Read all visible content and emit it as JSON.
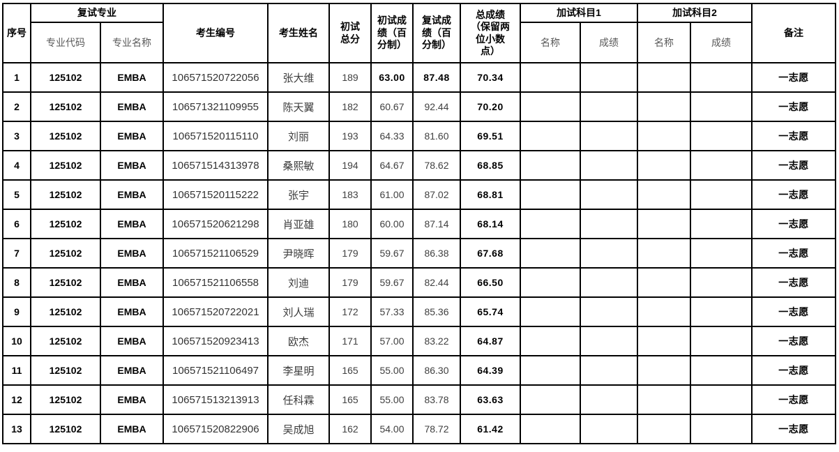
{
  "table": {
    "header": {
      "seq": "序号",
      "retest_major_group": "复试专业",
      "major_code": "专业代码",
      "major_name": "专业名称",
      "candidate_id": "考生编号",
      "candidate_name": "考生姓名",
      "initial_total": "初试\n总分",
      "initial_score": "初试成\n绩（百\n分制）",
      "retest_score": "复试成\n绩（百\n分制）",
      "total_score": "总成绩\n（保留两\n位小数\n点）",
      "extra_subject1_group": "加试科目1",
      "extra_subject2_group": "加试科目2",
      "extra1_name": "名称",
      "extra1_score": "成绩",
      "extra2_name": "名称",
      "extra2_score": "成绩",
      "remark": "备注"
    },
    "columns": [
      {
        "key": "seq"
      },
      {
        "key": "major_code"
      },
      {
        "key": "major_name"
      },
      {
        "key": "candidate_id"
      },
      {
        "key": "candidate_name"
      },
      {
        "key": "initial_total"
      },
      {
        "key": "initial_score"
      },
      {
        "key": "retest_score"
      },
      {
        "key": "total_score"
      },
      {
        "key": "extra1_name"
      },
      {
        "key": "extra1_score"
      },
      {
        "key": "extra2_name"
      },
      {
        "key": "extra2_score"
      },
      {
        "key": "remark"
      }
    ],
    "rows": [
      {
        "seq": "1",
        "major_code": "125102",
        "major_name": "EMBA",
        "candidate_id": "106571520722056",
        "candidate_name": "张大维",
        "initial_total": "189",
        "initial_score": "63.00",
        "retest_score": "87.48",
        "total_score": "70.34",
        "extra1_name": "",
        "extra1_score": "",
        "extra2_name": "",
        "extra2_score": "",
        "remark": "一志愿",
        "bold_cols": [
          "initial_score",
          "retest_score"
        ]
      },
      {
        "seq": "2",
        "major_code": "125102",
        "major_name": "EMBA",
        "candidate_id": "106571321109955",
        "candidate_name": "陈天翼",
        "initial_total": "182",
        "initial_score": "60.67",
        "retest_score": "92.44",
        "total_score": "70.20",
        "extra1_name": "",
        "extra1_score": "",
        "extra2_name": "",
        "extra2_score": "",
        "remark": "一志愿"
      },
      {
        "seq": "3",
        "major_code": "125102",
        "major_name": "EMBA",
        "candidate_id": "106571520115110",
        "candidate_name": "刘丽",
        "initial_total": "193",
        "initial_score": "64.33",
        "retest_score": "81.60",
        "total_score": "69.51",
        "extra1_name": "",
        "extra1_score": "",
        "extra2_name": "",
        "extra2_score": "",
        "remark": "一志愿"
      },
      {
        "seq": "4",
        "major_code": "125102",
        "major_name": "EMBA",
        "candidate_id": "106571514313978",
        "candidate_name": "桑熙敏",
        "initial_total": "194",
        "initial_score": "64.67",
        "retest_score": "78.62",
        "total_score": "68.85",
        "extra1_name": "",
        "extra1_score": "",
        "extra2_name": "",
        "extra2_score": "",
        "remark": "一志愿"
      },
      {
        "seq": "5",
        "major_code": "125102",
        "major_name": "EMBA",
        "candidate_id": "106571520115222",
        "candidate_name": "张宇",
        "initial_total": "183",
        "initial_score": "61.00",
        "retest_score": "87.02",
        "total_score": "68.81",
        "extra1_name": "",
        "extra1_score": "",
        "extra2_name": "",
        "extra2_score": "",
        "remark": "一志愿"
      },
      {
        "seq": "6",
        "major_code": "125102",
        "major_name": "EMBA",
        "candidate_id": "106571520621298",
        "candidate_name": "肖亚雄",
        "initial_total": "180",
        "initial_score": "60.00",
        "retest_score": "87.14",
        "total_score": "68.14",
        "extra1_name": "",
        "extra1_score": "",
        "extra2_name": "",
        "extra2_score": "",
        "remark": "一志愿"
      },
      {
        "seq": "7",
        "major_code": "125102",
        "major_name": "EMBA",
        "candidate_id": "106571521106529",
        "candidate_name": "尹晓晖",
        "initial_total": "179",
        "initial_score": "59.67",
        "retest_score": "86.38",
        "total_score": "67.68",
        "extra1_name": "",
        "extra1_score": "",
        "extra2_name": "",
        "extra2_score": "",
        "remark": "一志愿"
      },
      {
        "seq": "8",
        "major_code": "125102",
        "major_name": "EMBA",
        "candidate_id": "106571521106558",
        "candidate_name": "刘迪",
        "initial_total": "179",
        "initial_score": "59.67",
        "retest_score": "82.44",
        "total_score": "66.50",
        "extra1_name": "",
        "extra1_score": "",
        "extra2_name": "",
        "extra2_score": "",
        "remark": "一志愿"
      },
      {
        "seq": "9",
        "major_code": "125102",
        "major_name": "EMBA",
        "candidate_id": "106571520722021",
        "candidate_name": "刘人瑞",
        "initial_total": "172",
        "initial_score": "57.33",
        "retest_score": "85.36",
        "total_score": "65.74",
        "extra1_name": "",
        "extra1_score": "",
        "extra2_name": "",
        "extra2_score": "",
        "remark": "一志愿"
      },
      {
        "seq": "10",
        "major_code": "125102",
        "major_name": "EMBA",
        "candidate_id": "106571520923413",
        "candidate_name": "欧杰",
        "initial_total": "171",
        "initial_score": "57.00",
        "retest_score": "83.22",
        "total_score": "64.87",
        "extra1_name": "",
        "extra1_score": "",
        "extra2_name": "",
        "extra2_score": "",
        "remark": "一志愿"
      },
      {
        "seq": "11",
        "major_code": "125102",
        "major_name": "EMBA",
        "candidate_id": "106571521106497",
        "candidate_name": "李星明",
        "initial_total": "165",
        "initial_score": "55.00",
        "retest_score": "86.30",
        "total_score": "64.39",
        "extra1_name": "",
        "extra1_score": "",
        "extra2_name": "",
        "extra2_score": "",
        "remark": "一志愿"
      },
      {
        "seq": "12",
        "major_code": "125102",
        "major_name": "EMBA",
        "candidate_id": "106571513213913",
        "candidate_name": "任科霖",
        "initial_total": "165",
        "initial_score": "55.00",
        "retest_score": "83.78",
        "total_score": "63.63",
        "extra1_name": "",
        "extra1_score": "",
        "extra2_name": "",
        "extra2_score": "",
        "remark": "一志愿"
      },
      {
        "seq": "13",
        "major_code": "125102",
        "major_name": "EMBA",
        "candidate_id": "106571520822906",
        "candidate_name": "吴成旭",
        "initial_total": "162",
        "initial_score": "54.00",
        "retest_score": "78.72",
        "total_score": "61.42",
        "extra1_name": "",
        "extra1_score": "",
        "extra2_name": "",
        "extra2_score": "",
        "remark": "一志愿"
      }
    ]
  },
  "colors": {
    "border": "#000000",
    "header_text": "#000000",
    "subheader_text": "#595959",
    "data_text": "#404040",
    "bold_text": "#000000",
    "background": "#ffffff"
  }
}
